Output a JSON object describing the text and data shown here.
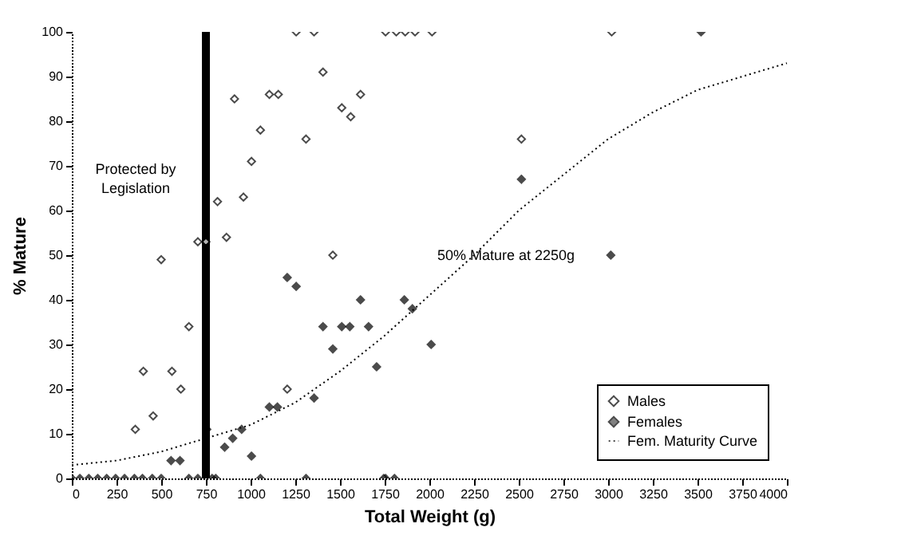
{
  "chart_data": {
    "type": "scatter",
    "xlabel": "Total Weight (g)",
    "ylabel": "% Mature",
    "xlim": [
      0,
      4000
    ],
    "xticks": [
      0,
      250,
      500,
      750,
      1000,
      1250,
      1500,
      1750,
      2000,
      2250,
      2500,
      2750,
      3000,
      3250,
      3500,
      3750,
      4000
    ],
    "ylim": [
      0,
      100
    ],
    "yticks": [
      0,
      10,
      20,
      30,
      40,
      50,
      60,
      70,
      80,
      90,
      100
    ],
    "grid": false,
    "legend": "bottom right",
    "marker": "diamond",
    "series": [
      {
        "name": "Males",
        "color": "#000000",
        "x": [
          355,
          400,
          455,
          500,
          560,
          610,
          655,
          705,
          750,
          815,
          865,
          910,
          960,
          1005,
          1055,
          1105,
          1155,
          1205,
          1255,
          1310,
          1355,
          1405,
          1460,
          1510,
          1560,
          1615,
          1755,
          1815,
          1865,
          1920,
          2015,
          1745,
          2515,
          3020
        ],
        "values": [
          11,
          24,
          14,
          49,
          24,
          20,
          34,
          53,
          53,
          62,
          54,
          85,
          63,
          71,
          78,
          86,
          86,
          20,
          100,
          76,
          100,
          91,
          50,
          83,
          81,
          86,
          100,
          100,
          100,
          100,
          100,
          0,
          76,
          100
        ]
      },
      {
        "name": "Females",
        "color": "#000000",
        "x": [
          0,
          45,
          95,
          145,
          195,
          245,
          295,
          350,
          395,
          450,
          500,
          655,
          705,
          785,
          805,
          1055,
          1310,
          1755,
          1805,
          555,
          605,
          755,
          855,
          900,
          950,
          1005,
          1105,
          1150,
          1355,
          1405,
          1460,
          1510,
          1555,
          1660,
          1705,
          2010,
          1205,
          1255,
          1615,
          1860,
          1905,
          2515,
          3015,
          3520
        ],
        "values": [
          0,
          0,
          0,
          0,
          0,
          0,
          0,
          0,
          0,
          0,
          0,
          0,
          0,
          0,
          0,
          0,
          0,
          0,
          0,
          4,
          4,
          11,
          7,
          9,
          11,
          5,
          16,
          16,
          18,
          34,
          29,
          34,
          34,
          34,
          25,
          30,
          45,
          43,
          40,
          40,
          38,
          67,
          50,
          100
        ]
      },
      {
        "name": "Fem. Maturity Curve",
        "type": "line",
        "line_style": "dotted",
        "marker": "none",
        "color": "#000000",
        "x": [
          0,
          250,
          500,
          750,
          1000,
          1250,
          1500,
          1750,
          2000,
          2250,
          2500,
          2750,
          3000,
          3250,
          3500,
          3750,
          4000
        ],
        "values": [
          3,
          4,
          6,
          9,
          12,
          17,
          24,
          32,
          41,
          50,
          60,
          68,
          76,
          82,
          87,
          90,
          93
        ]
      }
    ],
    "ref_lines": [
      {
        "axis": "x",
        "value": 750,
        "color": "#000000"
      }
    ],
    "annotations": [
      "Protected by\nLegislation",
      {
        "text": "50% Mature at 2250g",
        "x": 2250,
        "y": 50
      }
    ]
  }
}
